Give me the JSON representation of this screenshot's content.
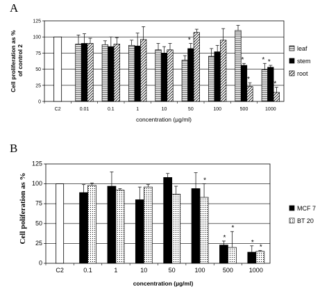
{
  "chart_data": [
    {
      "type": "bar",
      "panel_label": "A",
      "ylabel": "Cell proliferation as % of control 2",
      "xlabel": "concentration (µg/ml)",
      "ylim": [
        0,
        125
      ],
      "yticks": [
        0,
        25,
        50,
        75,
        100,
        125
      ],
      "grid": true,
      "legend_position": "right",
      "categories": [
        "C2",
        "0.01",
        "0.1",
        "1",
        "10",
        "50",
        "100",
        "500",
        "1000"
      ],
      "control": {
        "category": "C2",
        "value": 100
      },
      "series": [
        {
          "name": "leaf",
          "pattern": "horizontal-lines",
          "values": [
            null,
            89,
            88,
            87,
            80,
            64,
            70,
            110,
            49
          ],
          "errors": [
            null,
            14,
            6,
            8,
            10,
            7,
            12,
            8,
            10
          ],
          "significant": [
            false,
            false,
            false,
            false,
            false,
            false,
            false,
            false,
            true
          ]
        },
        {
          "name": "stem",
          "pattern": "solid-black",
          "values": [
            null,
            90,
            85,
            86,
            75,
            82,
            77,
            56,
            53
          ],
          "errors": [
            null,
            15,
            15,
            20,
            10,
            8,
            10,
            3,
            3
          ],
          "significant": [
            false,
            false,
            false,
            false,
            false,
            true,
            false,
            true,
            true
          ]
        },
        {
          "name": "root",
          "pattern": "diagonal-lines",
          "values": [
            null,
            90,
            89,
            96,
            80,
            107,
            95,
            23,
            14
          ],
          "errors": [
            null,
            8,
            10,
            20,
            10,
            5,
            18,
            6,
            8
          ],
          "significant": [
            false,
            false,
            false,
            false,
            false,
            false,
            false,
            true,
            true
          ]
        }
      ]
    },
    {
      "type": "bar",
      "panel_label": "B",
      "ylabel": "Cell poliferation as %",
      "xlabel": "concentration (µg/ml)",
      "ylim": [
        0,
        125
      ],
      "yticks": [
        0,
        25,
        50,
        75,
        100,
        125
      ],
      "grid": true,
      "legend_position": "right",
      "categories": [
        "C2",
        "0.1",
        "1",
        "10",
        "50",
        "100",
        "500",
        "1000"
      ],
      "control": {
        "category": "C2",
        "value": 100
      },
      "series": [
        {
          "name": "MCF 7",
          "pattern": "solid-black",
          "values": [
            null,
            89,
            97,
            80,
            108,
            94,
            23,
            14
          ],
          "errors": [
            null,
            10,
            18,
            16,
            5,
            20,
            5,
            8
          ],
          "significant": [
            false,
            false,
            false,
            false,
            false,
            false,
            true,
            true
          ]
        },
        {
          "name": "BT 20",
          "pattern": "dotted",
          "values": [
            null,
            98,
            92,
            96,
            87,
            83,
            20,
            15
          ],
          "errors": [
            null,
            3,
            2,
            3,
            10,
            17,
            20,
            1
          ],
          "significant": [
            false,
            false,
            false,
            false,
            false,
            true,
            true,
            true
          ]
        }
      ]
    }
  ]
}
